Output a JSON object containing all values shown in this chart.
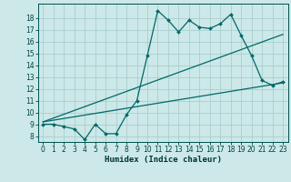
{
  "background_color": "#cce8e8",
  "grid_color": "#aacece",
  "line_color": "#006868",
  "xlabel": "Humidex (Indice chaleur)",
  "xlim": [
    -0.5,
    23.5
  ],
  "ylim": [
    7.5,
    19.2
  ],
  "xticks": [
    0,
    1,
    2,
    3,
    4,
    5,
    6,
    7,
    8,
    9,
    10,
    11,
    12,
    13,
    14,
    15,
    16,
    17,
    18,
    19,
    20,
    21,
    22,
    23
  ],
  "yticks": [
    8,
    9,
    10,
    11,
    12,
    13,
    14,
    15,
    16,
    17,
    18
  ],
  "series1_x": [
    0,
    1,
    2,
    3,
    4,
    5,
    6,
    7,
    8,
    9,
    10,
    11,
    12,
    13,
    14,
    15,
    16,
    17,
    18,
    19,
    20,
    21,
    22,
    23
  ],
  "series1_y": [
    9.0,
    9.0,
    8.8,
    8.6,
    7.7,
    9.0,
    8.2,
    8.2,
    9.8,
    11.0,
    14.8,
    18.6,
    17.8,
    16.8,
    17.8,
    17.2,
    17.1,
    17.5,
    18.3,
    16.5,
    14.8,
    12.7,
    12.3,
    12.6
  ],
  "series2_x": [
    0,
    23
  ],
  "series2_y": [
    9.2,
    16.6
  ],
  "series3_x": [
    0,
    23
  ],
  "series3_y": [
    9.2,
    12.5
  ],
  "markersize": 2.0,
  "linewidth": 0.9,
  "tick_fontsize": 5.5,
  "xlabel_fontsize": 6.5
}
